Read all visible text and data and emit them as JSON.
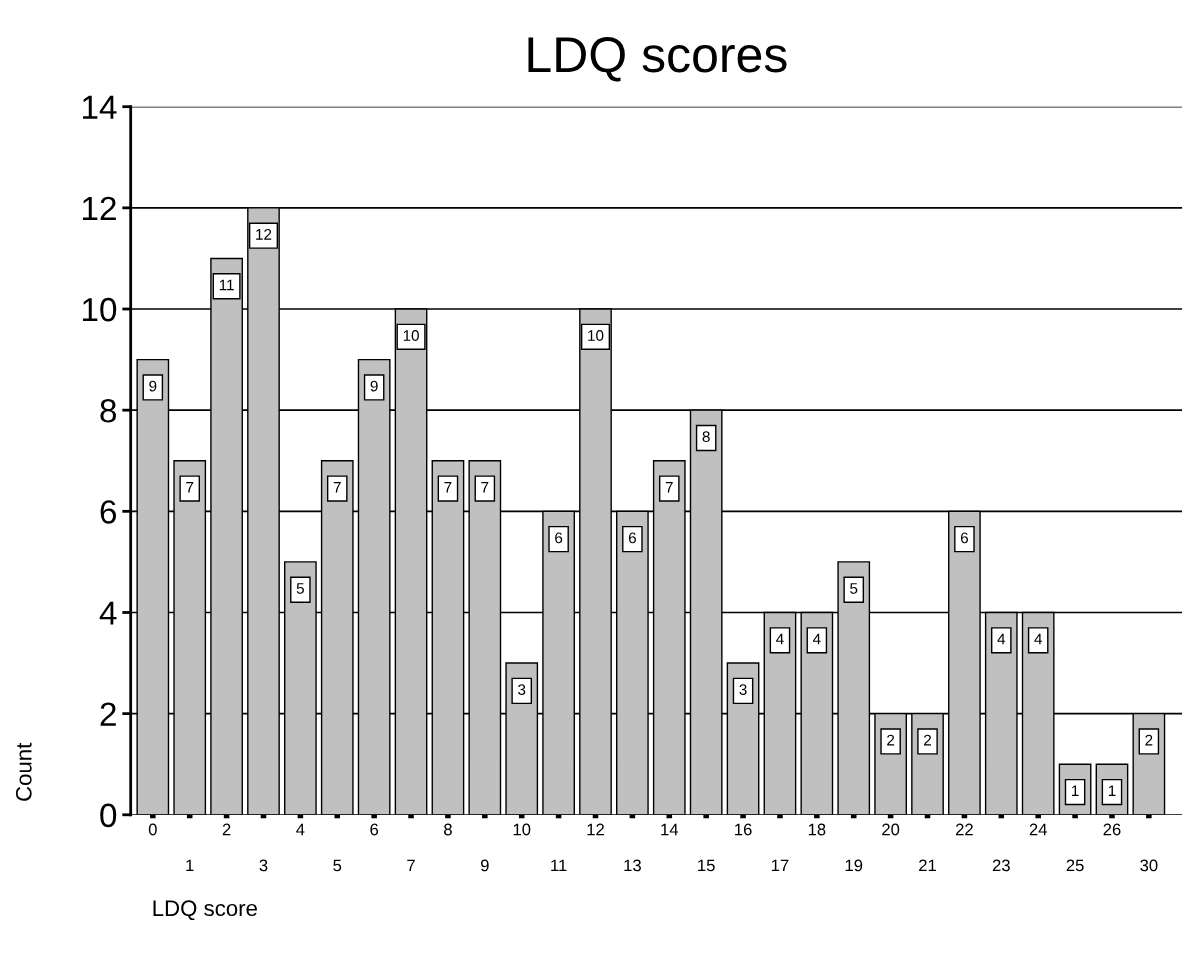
{
  "chart_data": {
    "type": "bar",
    "title": "LDQ scores",
    "xlabel": "LDQ score",
    "ylabel": "Count",
    "categories": [
      "0",
      "1",
      "2",
      "3",
      "4",
      "5",
      "6",
      "7",
      "8",
      "9",
      "10",
      "11",
      "12",
      "13",
      "14",
      "15",
      "16",
      "17",
      "18",
      "19",
      "20",
      "21",
      "22",
      "23",
      "24",
      "25",
      "26",
      "30"
    ],
    "values": [
      9,
      7,
      11,
      12,
      5,
      7,
      9,
      10,
      7,
      7,
      3,
      6,
      10,
      6,
      7,
      8,
      3,
      4,
      4,
      5,
      2,
      2,
      6,
      4,
      4,
      1,
      1,
      2
    ],
    "color": "#c0c0c0",
    "ylim": [
      0,
      14
    ],
    "yticks": [
      0,
      2,
      4,
      6,
      8,
      10,
      12,
      14
    ],
    "grid": "y",
    "data_labels": true
  }
}
